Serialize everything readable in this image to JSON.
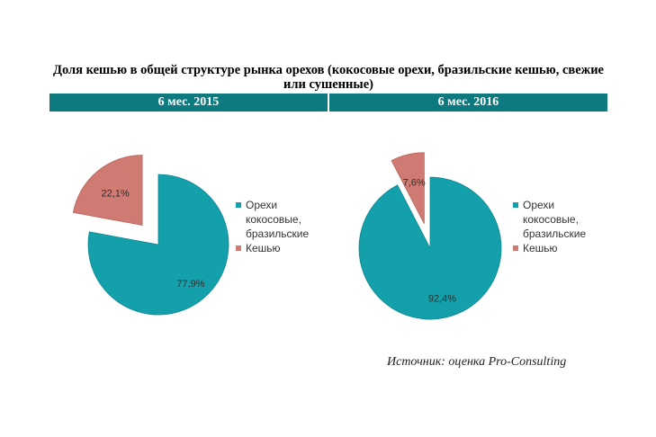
{
  "title": "Доля кешью в общей структуре рынка орехов (кокосовые орехи, бразильские кешью, свежие или сушенные)",
  "periods": [
    "6 мес. 2015",
    "6 мес. 2016"
  ],
  "source": "Источник: оценка Pro-Consulting",
  "colors": {
    "band": "#0d7a80",
    "nuts": "#13a0aa",
    "cashew": "#cf7a72"
  },
  "chart_data": [
    {
      "type": "pie",
      "title": "6 мес. 2015",
      "labels": [
        "Орехи кокосовые, бразильские",
        "Кешью"
      ],
      "values": [
        77.9,
        22.1
      ],
      "data_labels": [
        "77,9%",
        "22,1%"
      ],
      "legend_placement": "right"
    },
    {
      "type": "pie",
      "title": "6 мес. 2016",
      "labels": [
        "Орехи кокосовые, бразильские",
        "Кешью"
      ],
      "values": [
        92.4,
        7.6
      ],
      "data_labels": [
        "92,4%",
        "7,6%"
      ],
      "legend_placement": "right"
    }
  ],
  "legend": {
    "nuts_lines": [
      "Орехи",
      "кокосовые,",
      "бразильские"
    ],
    "cashew": "Кешью"
  }
}
